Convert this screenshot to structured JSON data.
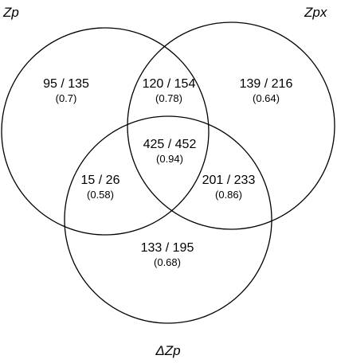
{
  "sets": [
    {
      "id": "zp",
      "label": "Zp"
    },
    {
      "id": "zpx",
      "label": "Zpx"
    },
    {
      "id": "dzp",
      "label": "ΔZp"
    }
  ],
  "regions": {
    "zp_only": {
      "count": "95 / 135",
      "ratio": "(0.7)"
    },
    "zp_zpx": {
      "count": "120 / 154",
      "ratio": "(0.78)"
    },
    "zpx_only": {
      "count": "139 / 216",
      "ratio": "(0.64)"
    },
    "all": {
      "count": "425 / 452",
      "ratio": "(0.94)"
    },
    "zp_dzp": {
      "count": "15 / 26",
      "ratio": "(0.58)"
    },
    "zpx_dzp": {
      "count": "201 / 233",
      "ratio": "(0.86)"
    },
    "dzp_only": {
      "count": "133 / 195",
      "ratio": "(0.68)"
    }
  },
  "colors": {
    "stroke": "#000000",
    "text": "#000000",
    "background": "#ffffff"
  }
}
